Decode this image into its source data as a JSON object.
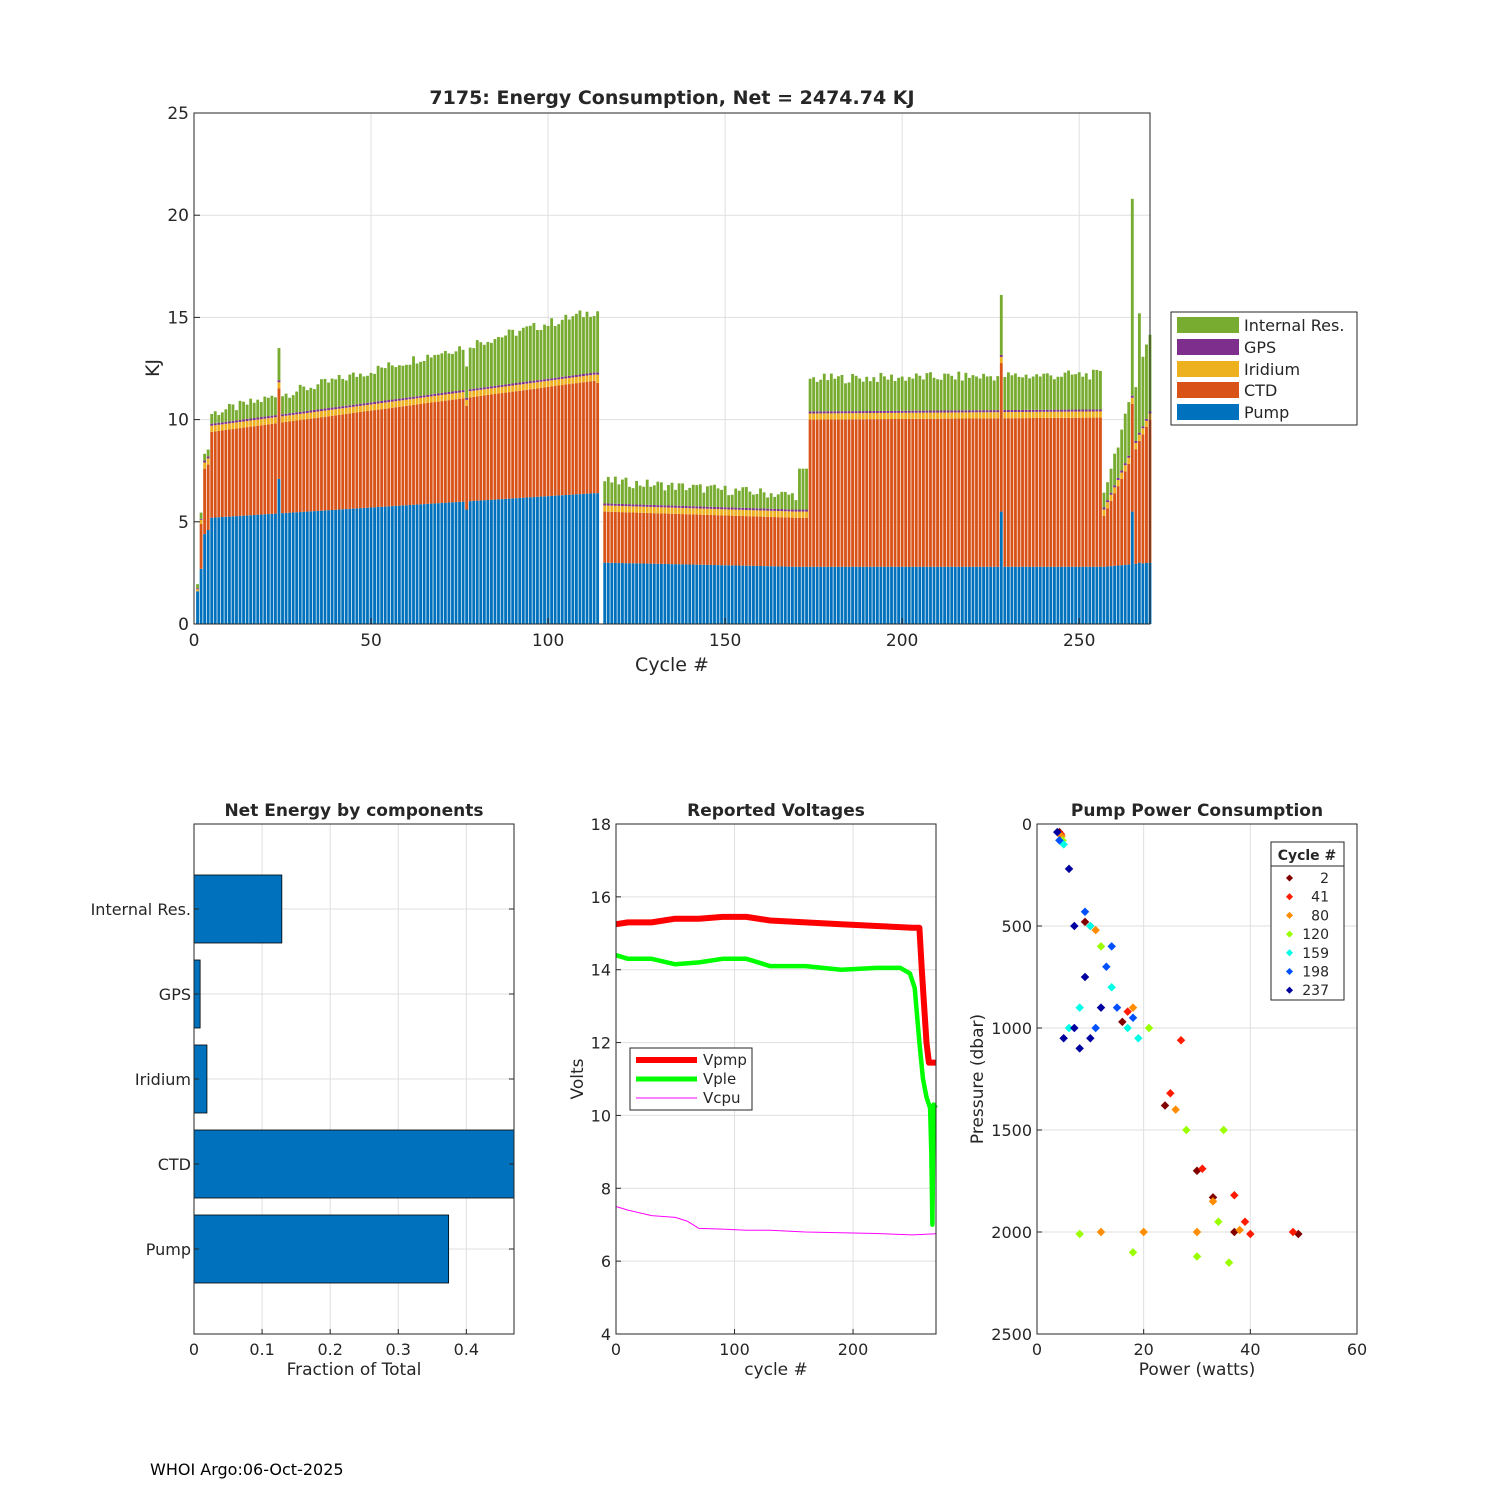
{
  "footer": "WHOI Argo:06-Oct-2025",
  "colors": {
    "pump": "#0072BD",
    "ctd": "#D95319",
    "iridium": "#EDB120",
    "gps": "#7E2F8E",
    "internal": "#77AC30",
    "grid": "#dfdfdf",
    "axis": "#262626",
    "vpmp": "#ff0000",
    "vple": "#00ff00",
    "vcpu": "#ff00ff",
    "cycle_colors": [
      "#800000",
      "#ff1a00",
      "#ff8c00",
      "#9aff00",
      "#00ffe6",
      "#0050ff",
      "#0000a0"
    ]
  },
  "chart_data": [
    {
      "id": "energy",
      "type": "bar",
      "stacked": true,
      "title": "7175: Energy Consumption,  Net = 2474.74 KJ",
      "xlabel": "Cycle #",
      "ylabel": "KJ",
      "xlim": [
        0,
        270
      ],
      "ylim": [
        0,
        25
      ],
      "xticks": [
        0,
        50,
        100,
        150,
        200,
        250
      ],
      "yticks": [
        0,
        5,
        10,
        15,
        20,
        25
      ],
      "grid": true,
      "legend_position": "outside-right",
      "legend": [
        "Internal Res.",
        "GPS",
        "Iridium",
        "CTD",
        "Pump"
      ],
      "segments": [
        {
          "from": 1,
          "to": 1,
          "pump": 1.6,
          "ctd": 0.0,
          "iridium": 0.1,
          "gps": 0.05,
          "internal": 0.2
        },
        {
          "from": 2,
          "to": 2,
          "pump": 2.7,
          "ctd": 2.2,
          "iridium": 0.2,
          "gps": 0.05,
          "internal": 0.3
        },
        {
          "from": 3,
          "to": 4,
          "pump_start": 4.4,
          "pump_end": 4.6,
          "total_start": 8.3,
          "total_end": 8.6,
          "ctd": 3.2
        },
        {
          "from": 5,
          "to": 113,
          "pump_start": 5.2,
          "pump_end": 6.4,
          "total_start": 10.3,
          "total_end": 15.3,
          "ctd_start": 4.2,
          "ctd_end": 5.5
        },
        {
          "from": 114,
          "to": 114,
          "pump": 6.4,
          "ctd": 5.4,
          "iridium": 0.4,
          "gps": 0.1,
          "internal": 3.0
        },
        {
          "from": 116,
          "to": 170,
          "pump_start": 3.0,
          "pump_end": 2.8,
          "total_start": 7.0,
          "total_end": 6.3,
          "ctd_start": 2.5,
          "ctd_end": 2.4
        },
        {
          "from": 171,
          "to": 173,
          "pump": 2.8,
          "ctd": 2.4,
          "iridium": 0.3,
          "gps": 0.1,
          "internal": 2.0
        },
        {
          "from": 174,
          "to": 256,
          "pump_start": 2.8,
          "pump_end": 2.8,
          "total_start": 12.0,
          "total_end": 12.2,
          "ctd_start": 7.2,
          "ctd_end": 7.3
        },
        {
          "from": 257,
          "to": 270,
          "pump_start": 2.8,
          "pump_end": 3.0,
          "total_start": 6.5,
          "total_end": 14.2,
          "ctd_start": 2.5,
          "ctd_end": 7.0
        }
      ],
      "spikes": [
        {
          "cycle": 24,
          "pump": 7.1,
          "total": 13.5
        },
        {
          "cycle": 77,
          "pump": 5.6,
          "total": 12.6
        },
        {
          "cycle": 228,
          "pump": 5.5,
          "total": 16.1
        },
        {
          "cycle": 265,
          "pump": 5.5,
          "total": 20.8
        },
        {
          "cycle": 267,
          "pump": 3.0,
          "total": 15.2
        }
      ]
    },
    {
      "id": "components",
      "type": "barh",
      "title": "Net Energy by components",
      "xlabel": "Fraction of Total",
      "xlim": [
        0,
        0.47
      ],
      "xticks": [
        0,
        0.1,
        0.2,
        0.3,
        0.4
      ],
      "xticklabels": [
        "0",
        "0.1",
        "0.2",
        "0.3",
        "0.4"
      ],
      "grid": true,
      "categories": [
        "Internal Res.",
        "GPS",
        "Iridium",
        "CTD",
        "Pump"
      ],
      "values": [
        0.129,
        0.009,
        0.019,
        0.47,
        0.374
      ]
    },
    {
      "id": "voltages",
      "type": "line",
      "title": "Reported Voltages",
      "xlabel": "cycle #",
      "ylabel": "Volts",
      "xlim": [
        0,
        270
      ],
      "ylim": [
        4,
        18
      ],
      "xticks": [
        0,
        100,
        200
      ],
      "yticks": [
        4,
        6,
        8,
        10,
        12,
        14,
        16,
        18
      ],
      "grid": true,
      "legend_position": "left-middle",
      "series": [
        {
          "name": "Vpmp",
          "x": [
            0,
            10,
            30,
            50,
            70,
            90,
            110,
            130,
            160,
            190,
            220,
            250,
            256,
            258,
            262,
            264,
            270
          ],
          "y": [
            15.25,
            15.3,
            15.3,
            15.4,
            15.4,
            15.45,
            15.45,
            15.35,
            15.3,
            15.25,
            15.2,
            15.15,
            15.15,
            14.0,
            12.0,
            11.45,
            11.45
          ]
        },
        {
          "name": "Vple",
          "x": [
            0,
            10,
            30,
            50,
            70,
            90,
            110,
            130,
            160,
            190,
            220,
            240,
            248,
            252,
            256,
            259,
            262,
            265,
            266,
            267,
            268,
            270
          ],
          "y": [
            14.4,
            14.3,
            14.3,
            14.15,
            14.2,
            14.3,
            14.3,
            14.1,
            14.1,
            14.0,
            14.05,
            14.05,
            13.9,
            13.5,
            12.0,
            11.0,
            10.5,
            10.2,
            9.0,
            7.0,
            10.3,
            10.2
          ]
        },
        {
          "name": "Vcpu",
          "x": [
            0,
            10,
            30,
            50,
            60,
            70,
            90,
            110,
            130,
            160,
            190,
            220,
            250,
            270
          ],
          "y": [
            7.5,
            7.4,
            7.25,
            7.2,
            7.1,
            6.9,
            6.88,
            6.85,
            6.85,
            6.8,
            6.78,
            6.76,
            6.72,
            6.75
          ]
        }
      ]
    },
    {
      "id": "pump_power",
      "type": "scatter",
      "title": "Pump Power Consumption",
      "xlabel": "Power (watts)",
      "ylabel": "Pressure (dbar)",
      "xlim": [
        0,
        60
      ],
      "ylim": [
        0,
        2500
      ],
      "y_reversed": true,
      "xticks": [
        0,
        20,
        40,
        60
      ],
      "yticks": [
        0,
        500,
        1000,
        1500,
        2000,
        2500
      ],
      "grid": true,
      "legend_title": "Cycle #",
      "legend_position": "top-right",
      "series": [
        {
          "name": "2",
          "points": [
            [
              4.2,
              40
            ],
            [
              9,
              480
            ],
            [
              16,
              970
            ],
            [
              24,
              1380
            ],
            [
              30,
              1700
            ],
            [
              33,
              1830
            ],
            [
              37,
              2000
            ],
            [
              49,
              2010
            ]
          ]
        },
        {
          "name": "41",
          "points": [
            [
              4.5,
              50
            ],
            [
              10,
              500
            ],
            [
              17,
              920
            ],
            [
              25,
              1320
            ],
            [
              31,
              1690
            ],
            [
              37,
              1820
            ],
            [
              39,
              1950
            ],
            [
              48,
              2000
            ],
            [
              40,
              2010
            ],
            [
              27,
              1060
            ]
          ]
        },
        {
          "name": "80",
          "points": [
            [
              4.6,
              60
            ],
            [
              11,
              520
            ],
            [
              18,
              900
            ],
            [
              26,
              1400
            ],
            [
              33,
              1850
            ],
            [
              30,
              2000
            ],
            [
              20,
              2000
            ],
            [
              12,
              2000
            ],
            [
              38,
              1990
            ]
          ]
        },
        {
          "name": "120",
          "points": [
            [
              4.8,
              80
            ],
            [
              12,
              600
            ],
            [
              21,
              1000
            ],
            [
              28,
              1500
            ],
            [
              34,
              1950
            ],
            [
              36,
              2150
            ],
            [
              30,
              2120
            ],
            [
              18,
              2100
            ],
            [
              8,
              2010
            ],
            [
              35,
              1500
            ]
          ]
        },
        {
          "name": "159",
          "points": [
            [
              5,
              100
            ],
            [
              10,
              500
            ],
            [
              14,
              800
            ],
            [
              17,
              1000
            ],
            [
              6,
              1000
            ],
            [
              19,
              1050
            ],
            [
              8,
              900
            ]
          ]
        },
        {
          "name": "198",
          "points": [
            [
              4.2,
              80
            ],
            [
              9,
              430
            ],
            [
              13,
              700
            ],
            [
              15,
              900
            ],
            [
              11,
              1000
            ],
            [
              18,
              950
            ],
            [
              14,
              600
            ]
          ]
        },
        {
          "name": "237",
          "points": [
            [
              3.8,
              40
            ],
            [
              6,
              220
            ],
            [
              7,
              500
            ],
            [
              9,
              750
            ],
            [
              7,
              1000
            ],
            [
              10,
              1050
            ],
            [
              12,
              900
            ],
            [
              5,
              1050
            ],
            [
              8,
              1100
            ]
          ]
        }
      ]
    }
  ]
}
